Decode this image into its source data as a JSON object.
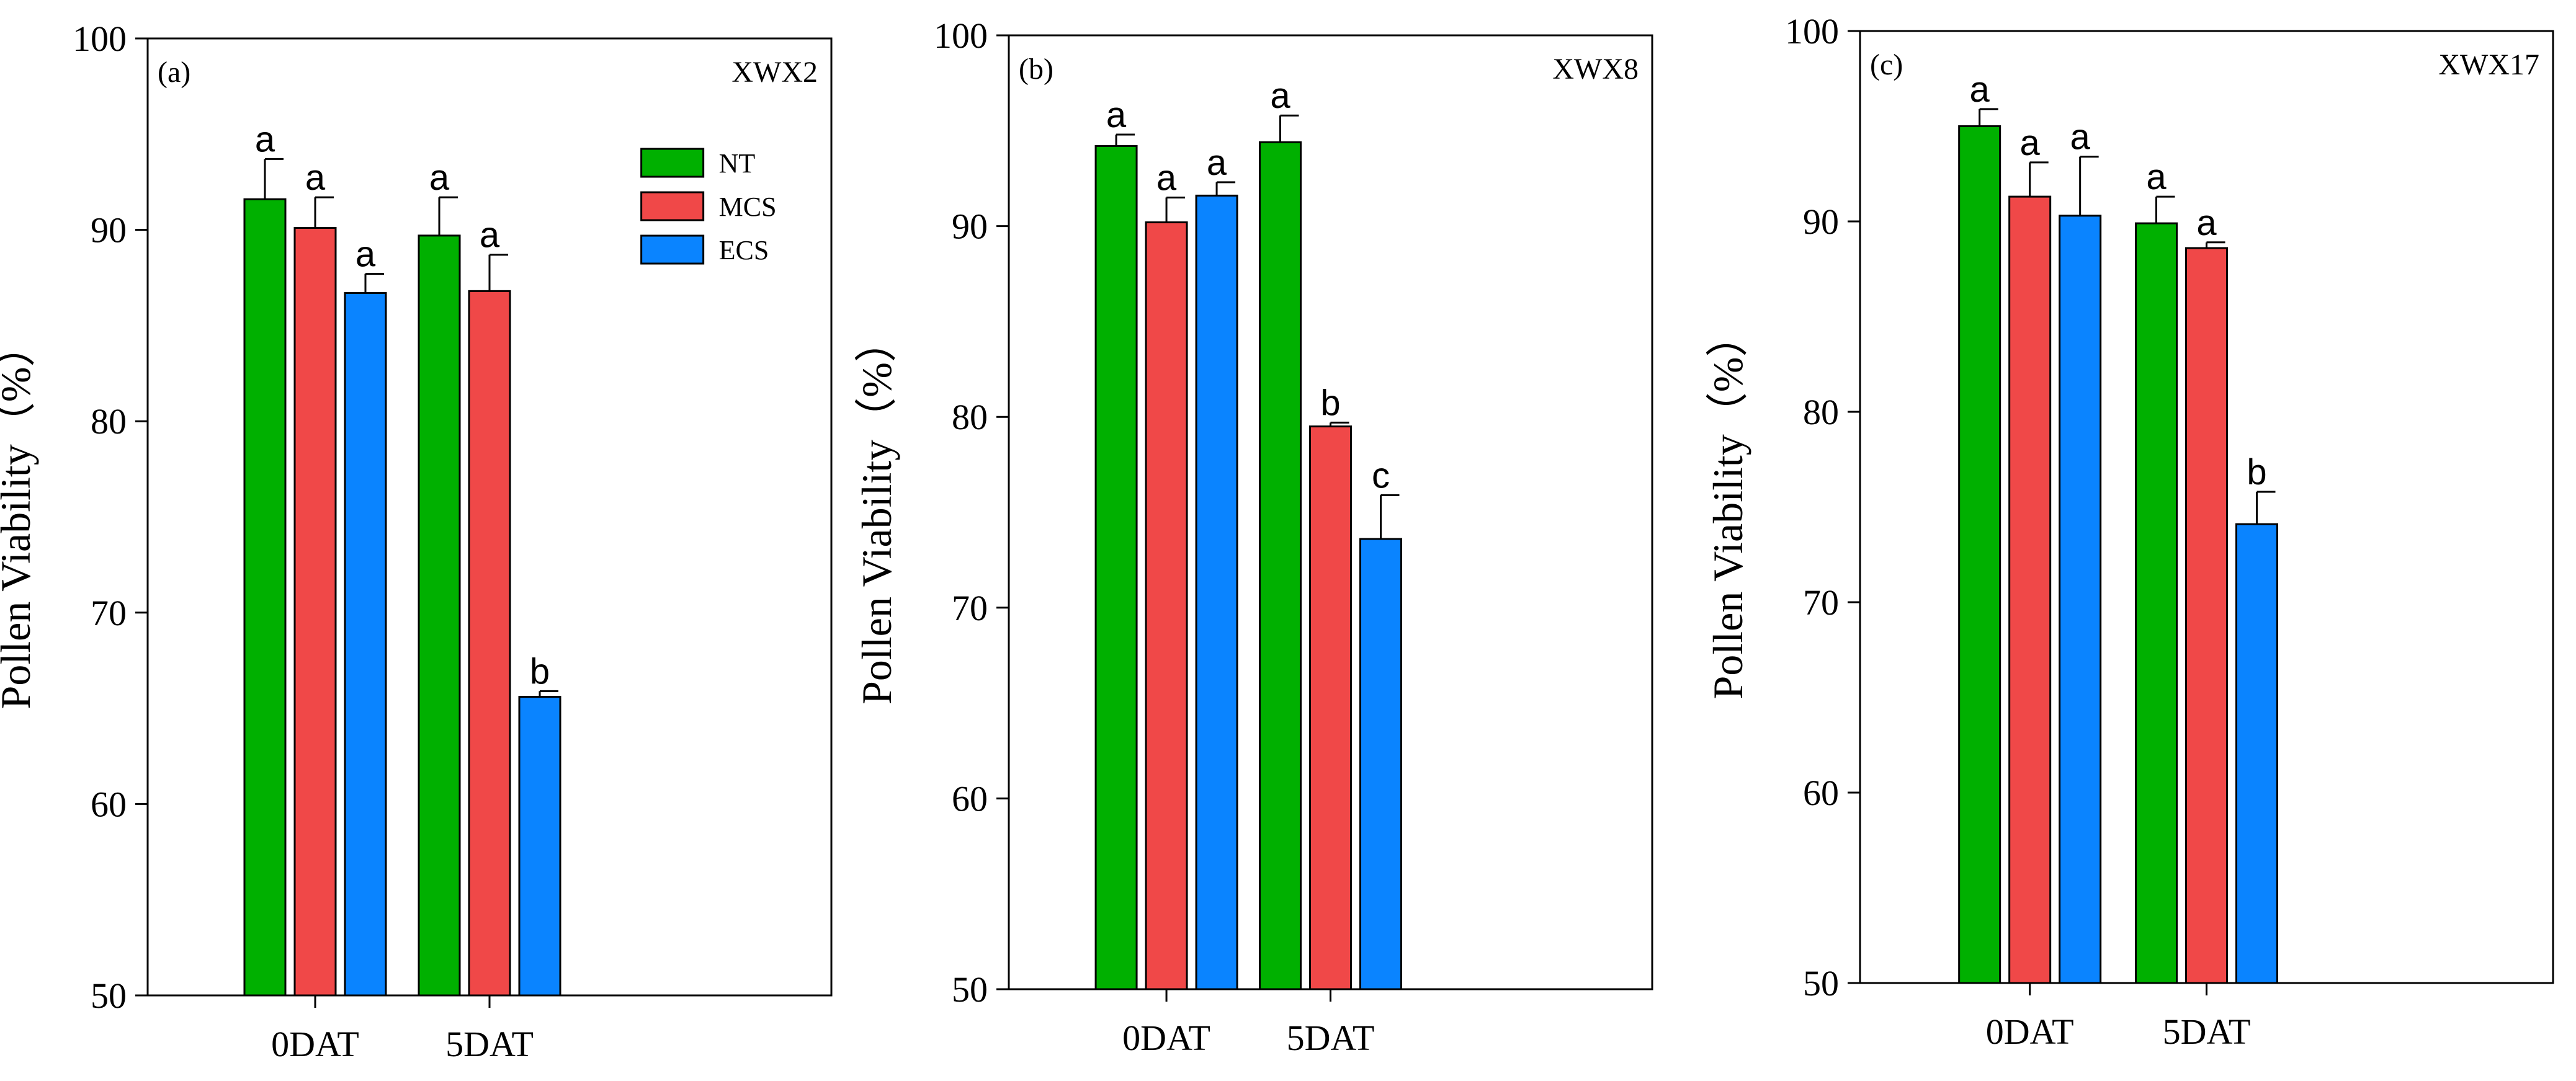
{
  "chart_data": [
    {
      "type": "bar",
      "panel_label": "(a)",
      "title": "XWX2",
      "ylabel": "Pollen Viability（%）",
      "ylim": [
        50,
        100
      ],
      "yticks": [
        50,
        60,
        70,
        80,
        90,
        100
      ],
      "categories": [
        "0DAT",
        "5DAT"
      ],
      "legend": {
        "placement": "top-right"
      },
      "series": [
        {
          "name": "NT",
          "color": "#00b000",
          "values": [
            91.6,
            89.7
          ],
          "errors": [
            2.1,
            2.0
          ],
          "letters": [
            "a",
            "a"
          ]
        },
        {
          "name": "MCS",
          "color": "#f04848",
          "values": [
            90.1,
            86.8
          ],
          "errors": [
            1.6,
            1.9
          ],
          "letters": [
            "a",
            "a"
          ]
        },
        {
          "name": "ECS",
          "color": "#0a84ff",
          "values": [
            86.7,
            65.6
          ],
          "errors": [
            1.0,
            0.3
          ],
          "letters": [
            "a",
            "b"
          ]
        }
      ]
    },
    {
      "type": "bar",
      "panel_label": "(b)",
      "title": "XWX8",
      "ylabel": "Pollen Viability（%）",
      "ylim": [
        50,
        100
      ],
      "yticks": [
        50,
        60,
        70,
        80,
        90,
        100
      ],
      "categories": [
        "0DAT",
        "5DAT"
      ],
      "series": [
        {
          "name": "NT",
          "color": "#00b000",
          "values": [
            94.2,
            94.4
          ],
          "errors": [
            0.6,
            1.4
          ],
          "letters": [
            "a",
            "a"
          ]
        },
        {
          "name": "MCS",
          "color": "#f04848",
          "values": [
            90.2,
            79.5
          ],
          "errors": [
            1.3,
            0.2
          ],
          "letters": [
            "a",
            "b"
          ]
        },
        {
          "name": "ECS",
          "color": "#0a84ff",
          "values": [
            91.6,
            73.6
          ],
          "errors": [
            0.7,
            2.3
          ],
          "letters": [
            "a",
            "c"
          ]
        }
      ]
    },
    {
      "type": "bar",
      "panel_label": "(c)",
      "title": "XWX17",
      "ylabel": "Pollen Viability（%）",
      "ylim": [
        50,
        100
      ],
      "yticks": [
        50,
        60,
        70,
        80,
        90,
        100
      ],
      "categories": [
        "0DAT",
        "5DAT"
      ],
      "series": [
        {
          "name": "NT",
          "color": "#00b000",
          "values": [
            95.0,
            89.9
          ],
          "errors": [
            0.9,
            1.4
          ],
          "letters": [
            "a",
            "a"
          ]
        },
        {
          "name": "MCS",
          "color": "#f04848",
          "values": [
            91.3,
            88.6
          ],
          "errors": [
            1.8,
            0.3
          ],
          "letters": [
            "a",
            "a"
          ]
        },
        {
          "name": "ECS",
          "color": "#0a84ff",
          "values": [
            90.3,
            74.1
          ],
          "errors": [
            3.1,
            1.7
          ],
          "letters": [
            "a",
            "b"
          ]
        }
      ]
    }
  ]
}
